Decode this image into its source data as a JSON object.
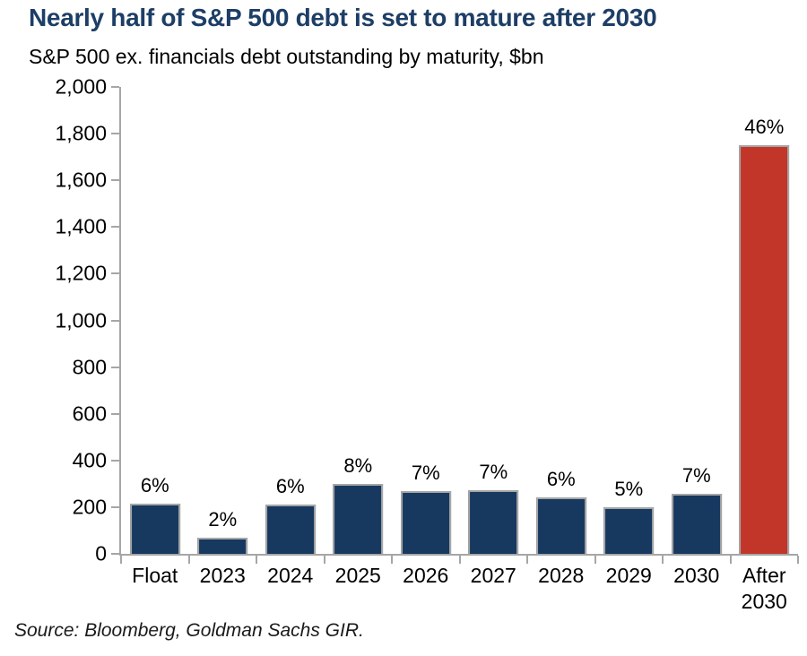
{
  "title": "Nearly half of S&P 500 debt is set to mature after 2030",
  "subtitle": "S&P 500 ex. financials debt outstanding by maturity, $bn",
  "source": "Source: Bloomberg, Goldman Sachs GIR.",
  "colors": {
    "title": "#1d3e66",
    "bar": "#17395f",
    "highlight_bar": "#c2362a",
    "bar_border": "#a6a6a6",
    "axis": "#a6a6a6"
  },
  "chart_data": {
    "type": "bar",
    "title": "Nearly half of S&P 500 debt is set to mature after 2030",
    "subtitle": "S&P 500 ex. financials debt outstanding by maturity, $bn",
    "categories": [
      "Float",
      "2023",
      "2024",
      "2025",
      "2026",
      "2027",
      "2028",
      "2029",
      "2030",
      "After 2030"
    ],
    "values": [
      215,
      70,
      210,
      300,
      268,
      273,
      242,
      198,
      258,
      1750
    ],
    "bar_labels": [
      "6%",
      "2%",
      "6%",
      "8%",
      "7%",
      "7%",
      "6%",
      "5%",
      "7%",
      "46%"
    ],
    "highlight_index": 9,
    "xlabel": "",
    "ylabel": "",
    "ylim": [
      0,
      2000
    ],
    "ytick_step": 200,
    "grid": false,
    "legend": "none"
  }
}
